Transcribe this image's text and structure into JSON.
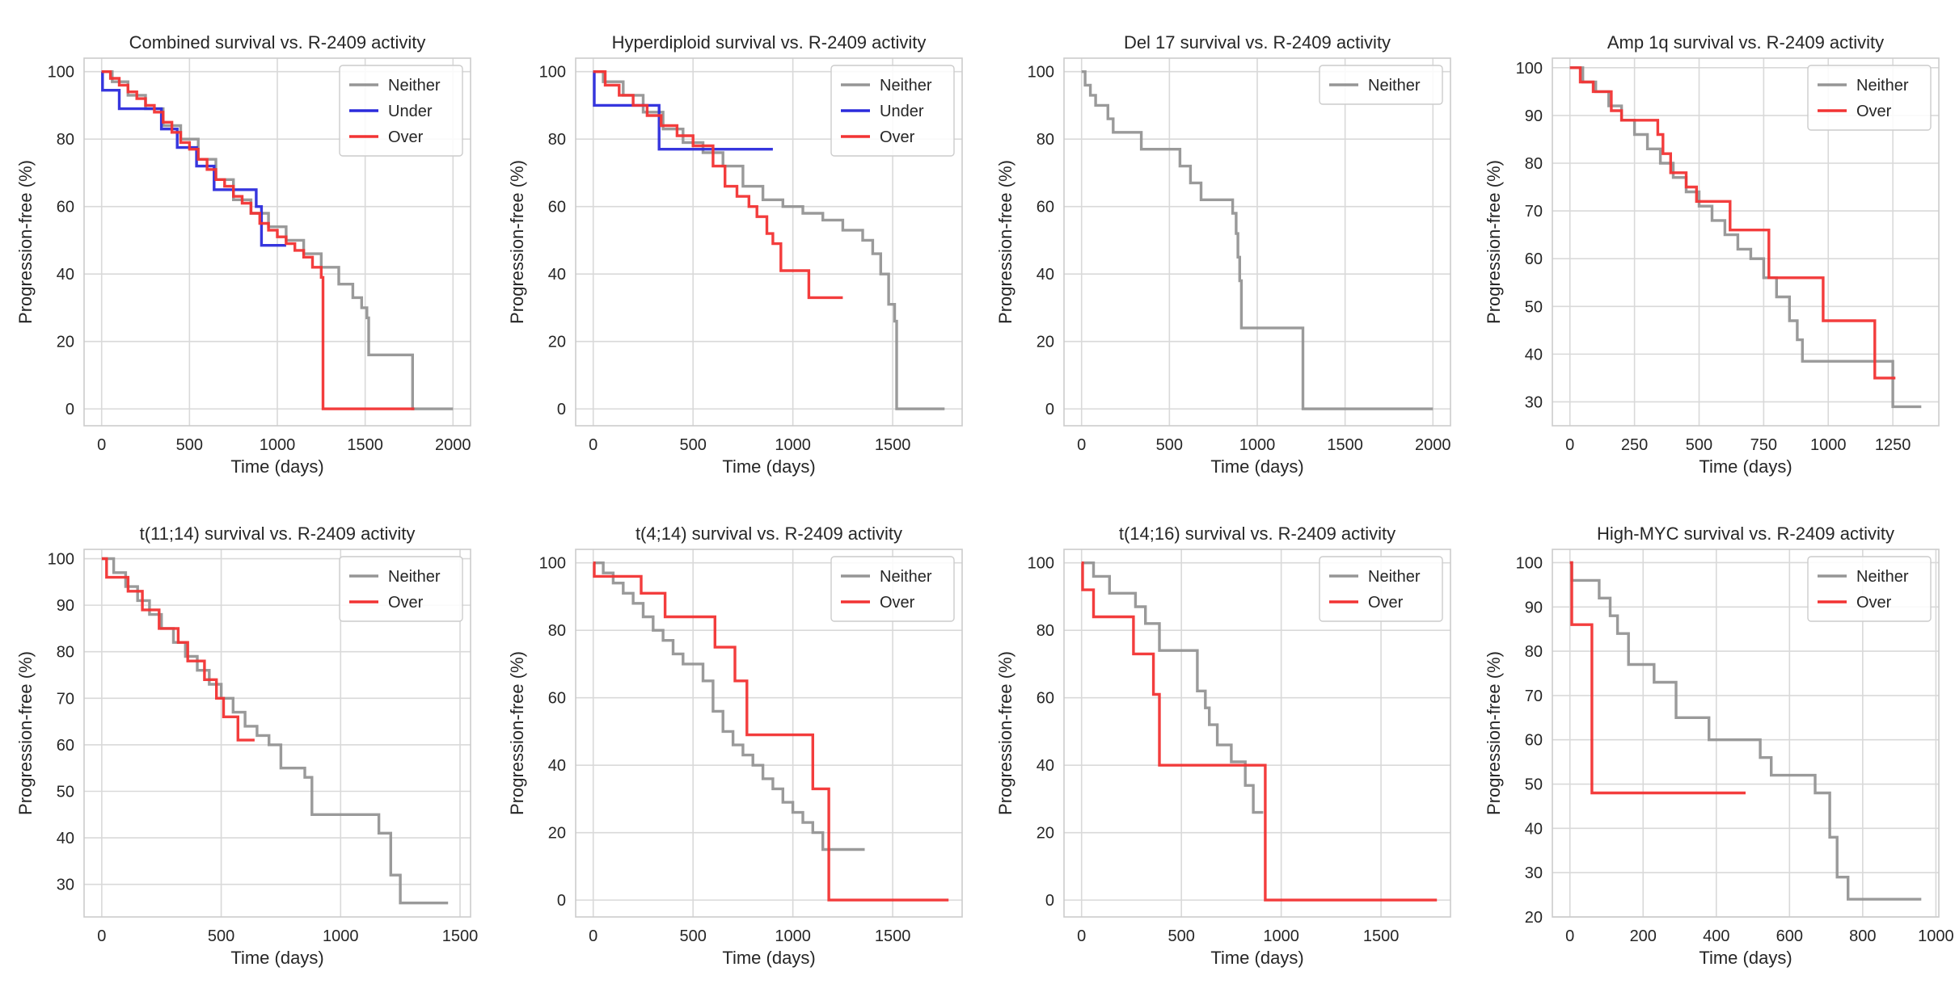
{
  "colors": {
    "Neither": "#959595",
    "Under": "#2b2bdc",
    "Over": "#f23333"
  },
  "chart_data": [
    {
      "type": "line",
      "title": "Combined survival vs. R-2409 activity",
      "xlabel": "Time (days)",
      "ylabel": "Progression-free (%)",
      "xlim": [
        -100,
        2100
      ],
      "ylim": [
        -5,
        104
      ],
      "xticks": [
        0,
        500,
        1000,
        1500,
        2000
      ],
      "yticks": [
        0,
        20,
        40,
        60,
        80,
        100
      ],
      "grid": true,
      "legend": "top-right",
      "series": [
        {
          "name": "Neither",
          "x": [
            0,
            60,
            150,
            250,
            350,
            450,
            550,
            650,
            750,
            850,
            950,
            1050,
            1150,
            1250,
            1350,
            1430,
            1480,
            1510,
            1520,
            1760,
            1770,
            2000
          ],
          "y": [
            100,
            97,
            93,
            89,
            84,
            80,
            74,
            68,
            62,
            58,
            54,
            50,
            46,
            42,
            37,
            33,
            30,
            27,
            16,
            16,
            0,
            0
          ]
        },
        {
          "name": "Under",
          "x": [
            0,
            5,
            100,
            340,
            430,
            540,
            640,
            880,
            910,
            1050
          ],
          "y": [
            100,
            94.5,
            89,
            83,
            77.5,
            72,
            65,
            60,
            48.5,
            48.5
          ]
        },
        {
          "name": "Over",
          "x": [
            0,
            50,
            100,
            150,
            200,
            250,
            300,
            350,
            400,
            450,
            500,
            550,
            600,
            650,
            700,
            750,
            800,
            850,
            900,
            950,
            1000,
            1050,
            1100,
            1150,
            1200,
            1250,
            1260,
            1780
          ],
          "y": [
            100,
            98,
            96,
            94,
            92,
            90,
            88,
            85,
            82,
            79,
            77,
            74,
            71,
            68,
            66,
            63,
            61,
            58,
            55,
            53,
            51,
            49,
            47,
            45,
            42,
            39,
            0,
            0
          ]
        }
      ]
    },
    {
      "type": "line",
      "title": "Hyperdiploid survival vs. R-2409 activity",
      "xlabel": "Time (days)",
      "ylabel": "Progression-free (%)",
      "xlim": [
        -88,
        1848
      ],
      "ylim": [
        -5,
        104
      ],
      "xticks": [
        0,
        500,
        1000,
        1500
      ],
      "yticks": [
        0,
        20,
        40,
        60,
        80,
        100
      ],
      "grid": true,
      "legend": "top-right",
      "series": [
        {
          "name": "Neither",
          "x": [
            0,
            50,
            150,
            250,
            350,
            450,
            550,
            650,
            750,
            850,
            950,
            1050,
            1150,
            1250,
            1350,
            1400,
            1440,
            1480,
            1510,
            1520,
            1760
          ],
          "y": [
            100,
            97,
            93,
            88,
            83,
            79,
            76,
            72,
            66,
            62,
            60,
            58,
            56,
            53,
            50,
            46,
            40,
            31,
            26,
            0,
            0
          ]
        },
        {
          "name": "Under",
          "x": [
            0,
            5,
            330,
            900
          ],
          "y": [
            100,
            90,
            77,
            77
          ]
        },
        {
          "name": "Over",
          "x": [
            0,
            60,
            130,
            200,
            270,
            340,
            420,
            500,
            600,
            660,
            720,
            780,
            820,
            870,
            900,
            940,
            1080,
            1250
          ],
          "y": [
            100,
            96,
            93,
            90,
            87,
            84,
            81,
            78,
            72,
            66,
            63,
            60,
            57,
            52,
            49,
            41,
            33,
            33
          ]
        }
      ]
    },
    {
      "type": "line",
      "title": "Del 17 survival vs. R-2409 activity",
      "xlabel": "Time (days)",
      "ylabel": "Progression-free (%)",
      "xlim": [
        -100,
        2100
      ],
      "ylim": [
        -5,
        104
      ],
      "xticks": [
        0,
        500,
        1000,
        1500,
        2000
      ],
      "yticks": [
        0,
        20,
        40,
        60,
        80,
        100
      ],
      "grid": true,
      "legend": "top-right",
      "series": [
        {
          "name": "Neither",
          "x": [
            0,
            20,
            50,
            80,
            150,
            180,
            340,
            560,
            620,
            680,
            860,
            880,
            890,
            900,
            910,
            1250,
            1260,
            2000
          ],
          "y": [
            100,
            96,
            93,
            90,
            86,
            82,
            77,
            72,
            67,
            62,
            58,
            52,
            45,
            38,
            24,
            24,
            0,
            0
          ]
        }
      ]
    },
    {
      "type": "line",
      "title": "Amp 1q survival vs. R-2409 activity",
      "xlabel": "Time (days)",
      "ylabel": "Progression-free (%)",
      "xlim": [
        -68,
        1428
      ],
      "ylim": [
        25,
        102
      ],
      "xticks": [
        0,
        250,
        500,
        750,
        1000,
        1250
      ],
      "yticks": [
        30,
        40,
        50,
        60,
        70,
        80,
        90,
        100
      ],
      "grid": true,
      "legend": "top-right",
      "series": [
        {
          "name": "Neither",
          "x": [
            0,
            50,
            100,
            150,
            200,
            250,
            300,
            350,
            400,
            450,
            500,
            550,
            600,
            650,
            700,
            750,
            800,
            850,
            880,
            900,
            1230,
            1250,
            1360
          ],
          "y": [
            100,
            97,
            95,
            92,
            89,
            86,
            83,
            80,
            77,
            74,
            71,
            68,
            65,
            62,
            60,
            56,
            52,
            47,
            43,
            38.5,
            38.5,
            29,
            29
          ]
        },
        {
          "name": "Over",
          "x": [
            0,
            40,
            90,
            160,
            200,
            340,
            360,
            390,
            450,
            490,
            620,
            770,
            980,
            1180,
            1260
          ],
          "y": [
            100,
            97,
            95,
            91,
            89,
            86,
            82,
            78,
            75,
            72,
            66,
            56,
            47,
            35,
            35
          ]
        }
      ]
    },
    {
      "type": "line",
      "title": "t(11;14) survival vs. R-2409 activity",
      "xlabel": "Time (days)",
      "ylabel": "Progression-free (%)",
      "xlim": [
        -74,
        1544
      ],
      "ylim": [
        23,
        102
      ],
      "xticks": [
        0,
        500,
        1000,
        1500
      ],
      "yticks": [
        30,
        40,
        50,
        60,
        70,
        80,
        90,
        100
      ],
      "grid": true,
      "legend": "top-right",
      "series": [
        {
          "name": "Neither",
          "x": [
            0,
            50,
            100,
            150,
            200,
            250,
            300,
            350,
            400,
            450,
            500,
            550,
            600,
            650,
            700,
            750,
            850,
            880,
            1130,
            1160,
            1210,
            1250,
            1450
          ],
          "y": [
            100,
            97,
            94,
            91,
            88,
            85,
            82,
            79,
            76,
            73,
            70,
            67,
            64,
            62,
            60,
            55,
            53,
            45,
            45,
            41,
            32,
            26,
            26
          ]
        },
        {
          "name": "Over",
          "x": [
            0,
            20,
            110,
            170,
            240,
            320,
            360,
            430,
            480,
            510,
            570,
            640
          ],
          "y": [
            100,
            96,
            93,
            89,
            85,
            82,
            78,
            74,
            70,
            66,
            61,
            61
          ]
        }
      ]
    },
    {
      "type": "line",
      "title": "t(4;14) survival vs. R-2409 activity",
      "xlabel": "Time (days)",
      "ylabel": "Progression-free (%)",
      "xlim": [
        -88,
        1848
      ],
      "ylim": [
        -5,
        104
      ],
      "xticks": [
        0,
        500,
        1000,
        1500
      ],
      "yticks": [
        0,
        20,
        40,
        60,
        80,
        100
      ],
      "grid": true,
      "legend": "top-right",
      "series": [
        {
          "name": "Neither",
          "x": [
            0,
            50,
            100,
            150,
            200,
            250,
            300,
            350,
            400,
            450,
            500,
            550,
            600,
            650,
            700,
            750,
            800,
            850,
            900,
            950,
            1000,
            1050,
            1100,
            1150,
            1360
          ],
          "y": [
            100,
            97,
            94,
            91,
            88,
            84,
            80,
            77,
            73,
            70,
            70,
            65,
            56,
            50,
            46,
            43,
            40,
            36,
            33,
            29,
            26,
            23,
            20,
            15,
            15
          ]
        },
        {
          "name": "Over",
          "x": [
            0,
            5,
            240,
            360,
            610,
            710,
            770,
            1100,
            1180,
            1780
          ],
          "y": [
            100,
            96,
            91,
            84,
            75,
            65,
            49,
            33,
            0,
            0
          ]
        }
      ]
    },
    {
      "type": "line",
      "title": "t(14;16) survival vs. R-2409 activity",
      "xlabel": "Time (days)",
      "ylabel": "Progression-free (%)",
      "xlim": [
        -88,
        1848
      ],
      "ylim": [
        -5,
        104
      ],
      "xticks": [
        0,
        500,
        1000,
        1500
      ],
      "yticks": [
        0,
        20,
        40,
        60,
        80,
        100
      ],
      "grid": true,
      "legend": "top-right",
      "series": [
        {
          "name": "Neither",
          "x": [
            0,
            60,
            140,
            270,
            320,
            390,
            560,
            580,
            620,
            640,
            680,
            750,
            820,
            860,
            910
          ],
          "y": [
            100,
            96,
            91,
            87,
            82,
            74,
            74,
            62,
            57,
            52,
            46,
            41,
            34,
            26,
            26
          ]
        },
        {
          "name": "Over",
          "x": [
            0,
            5,
            60,
            260,
            360,
            390,
            910,
            920,
            1780
          ],
          "y": [
            100,
            92,
            84,
            73,
            61,
            40,
            40,
            0,
            0
          ]
        }
      ]
    },
    {
      "type": "line",
      "title": "High-MYC survival vs. R-2409 activity",
      "xlabel": "Time (days)",
      "ylabel": "Progression-free (%)",
      "xlim": [
        -48,
        1008
      ],
      "ylim": [
        20,
        103
      ],
      "xticks": [
        0,
        200,
        400,
        600,
        800,
        1000
      ],
      "yticks": [
        20,
        30,
        40,
        50,
        60,
        70,
        80,
        90,
        100
      ],
      "grid": true,
      "legend": "top-right",
      "series": [
        {
          "name": "Neither",
          "x": [
            0,
            5,
            80,
            110,
            130,
            160,
            230,
            290,
            380,
            520,
            550,
            670,
            710,
            730,
            760,
            960
          ],
          "y": [
            100,
            96,
            92,
            88,
            84,
            77,
            73,
            65,
            60,
            56,
            52,
            48,
            38,
            29,
            24,
            24
          ]
        },
        {
          "name": "Over",
          "x": [
            0,
            5,
            60,
            480
          ],
          "y": [
            100,
            86,
            48,
            48
          ]
        }
      ]
    }
  ]
}
